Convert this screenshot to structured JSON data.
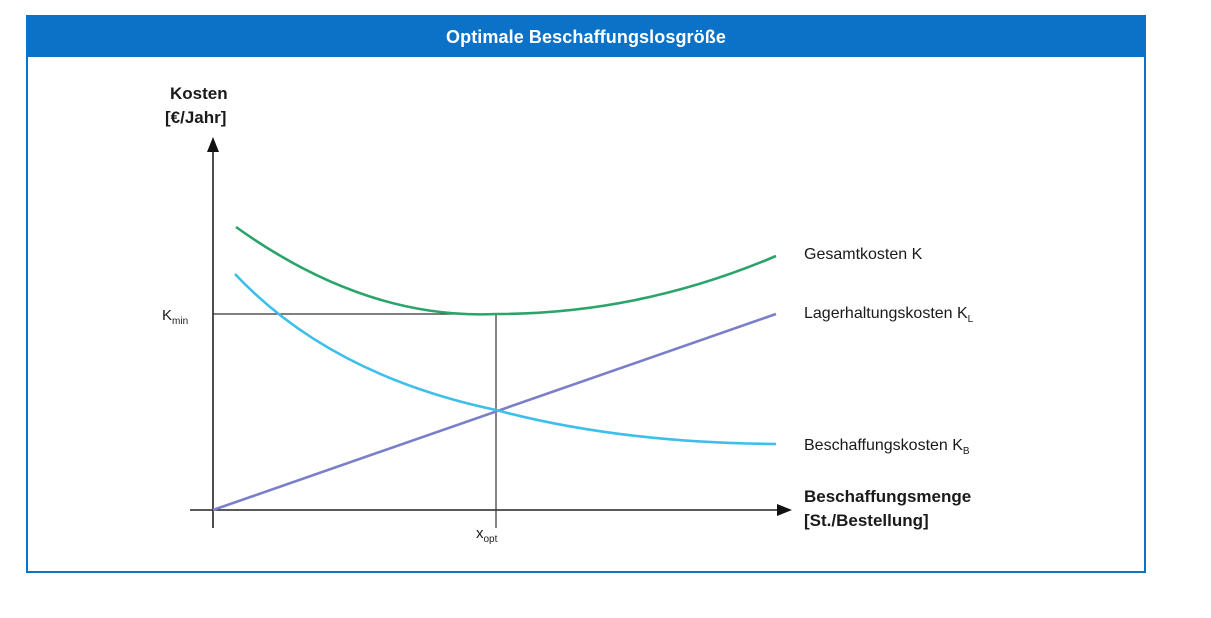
{
  "header": {
    "title": "Optimale Beschaffungslosgröße"
  },
  "axes": {
    "y_label_line1": "Kosten",
    "y_label_line2": "[€/Jahr]",
    "x_label_line1": "Beschaffungsmenge",
    "x_label_line2": "[St./Bestellung]"
  },
  "markers": {
    "kmin_base": "K",
    "kmin_sub": "min",
    "xopt_base": "x",
    "xopt_sub": "opt"
  },
  "curves": {
    "total": {
      "label_base": "Gesamtkosten K",
      "label_sub": "",
      "color": "#2aa46b"
    },
    "storage": {
      "label_base": "Lagerhaltungskosten K",
      "label_sub": "L",
      "color": "#7b7fc9"
    },
    "procurement": {
      "label_base": "Beschaffungskosten K",
      "label_sub": "B",
      "color": "#3dbfea"
    }
  },
  "colors": {
    "header_bg": "#0c72c8",
    "frame_border": "#0b73c5",
    "axis": "#222222"
  }
}
